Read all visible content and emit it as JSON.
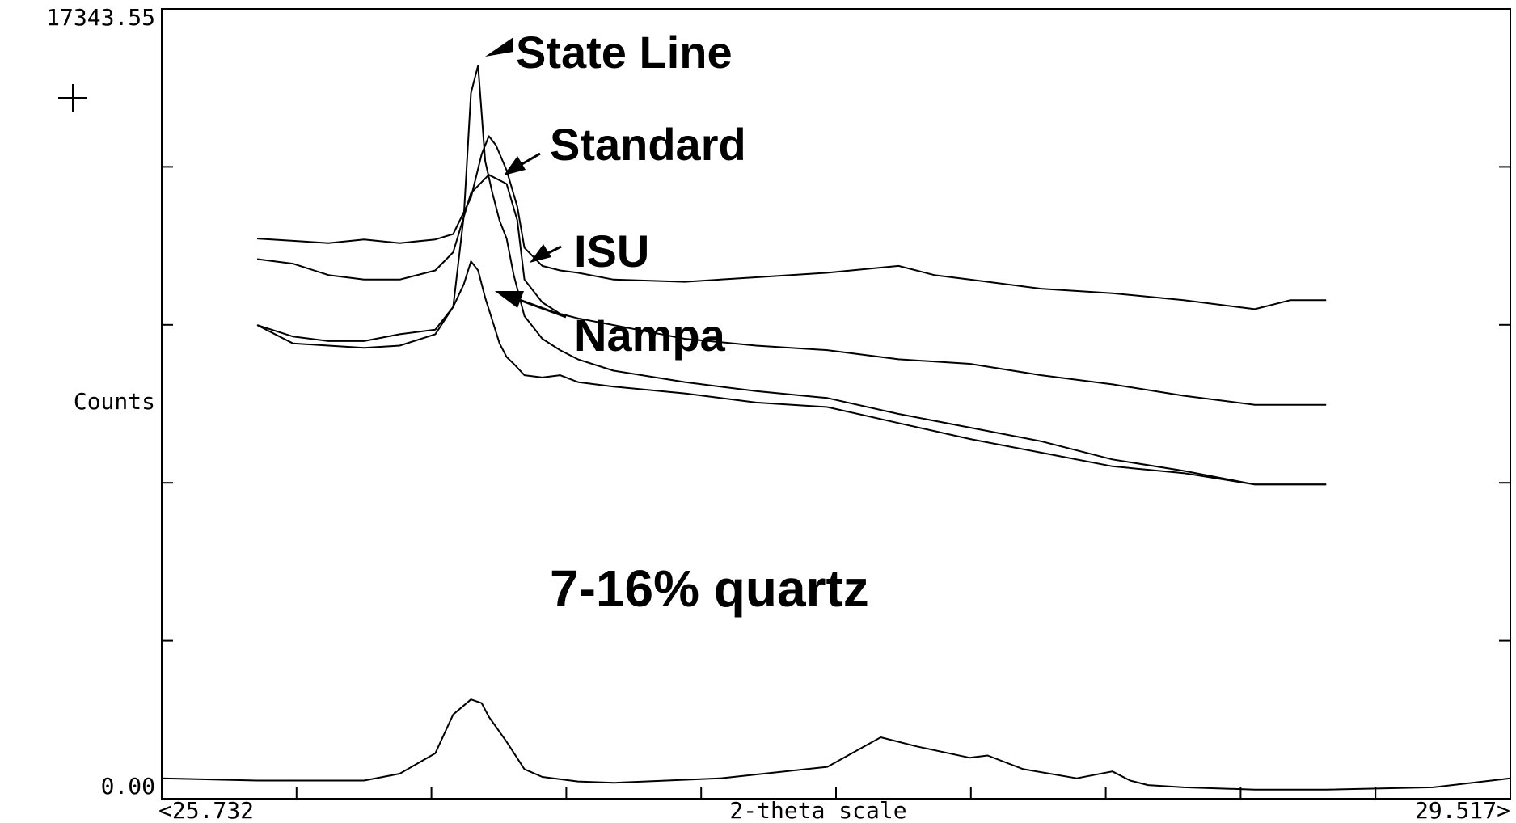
{
  "chart_data": {
    "type": "line",
    "title": "",
    "xlabel": "2-theta scale",
    "ylabel": "Counts",
    "xlim": [
      25.732,
      29.517
    ],
    "ylim": [
      0.0,
      17343.55
    ],
    "x_tick_labels": {
      "left": "<25.732",
      "right": "29.517>"
    },
    "y_tick_labels": {
      "top": "17343.55",
      "bottom": "0.00"
    },
    "grid": false,
    "legend": "none",
    "annotations": [
      {
        "id": "state-line",
        "text": "State  Line"
      },
      {
        "id": "standard",
        "text": "Standard"
      },
      {
        "id": "isu",
        "text": "ISU"
      },
      {
        "id": "nampa",
        "text": "Nampa"
      },
      {
        "id": "note",
        "text": "7-16% quartz"
      }
    ],
    "series": [
      {
        "id": "standard",
        "x": [
          26.0,
          26.1,
          26.2,
          26.3,
          26.4,
          26.5,
          26.55,
          26.6,
          26.63,
          26.65,
          26.67,
          26.7,
          26.73,
          26.75,
          26.8,
          26.85,
          26.9,
          27.0,
          27.2,
          27.4,
          27.6,
          27.8,
          27.9,
          28.0,
          28.2,
          28.4,
          28.6,
          28.8,
          28.9,
          29.0
        ],
        "y": [
          12300,
          12250,
          12200,
          12280,
          12200,
          12280,
          12400,
          13200,
          14150,
          14550,
          14350,
          13800,
          13000,
          12100,
          11700,
          11600,
          11550,
          11400,
          11350,
          11450,
          11550,
          11700,
          11500,
          11400,
          11200,
          11100,
          10950,
          10750,
          10950,
          10950
        ]
      },
      {
        "id": "isu",
        "x": [
          26.0,
          26.1,
          26.2,
          26.3,
          26.4,
          26.5,
          26.55,
          26.6,
          26.65,
          26.7,
          26.73,
          26.75,
          26.8,
          26.85,
          26.9,
          27.0,
          27.2,
          27.4,
          27.6,
          27.8,
          28.0,
          28.2,
          28.4,
          28.6,
          28.8,
          28.9,
          29.0
        ],
        "y": [
          11850,
          11750,
          11500,
          11400,
          11400,
          11600,
          12000,
          13300,
          13700,
          13500,
          12700,
          11400,
          10900,
          10650,
          10550,
          10400,
          10100,
          9950,
          9850,
          9650,
          9550,
          9300,
          9100,
          8850,
          8650,
          8650,
          8650
        ]
      },
      {
        "id": "state-line",
        "x": [
          26.0,
          26.1,
          26.2,
          26.3,
          26.4,
          26.5,
          26.55,
          26.58,
          26.6,
          26.62,
          26.64,
          26.66,
          26.68,
          26.7,
          26.72,
          26.75,
          26.8,
          26.85,
          26.9,
          27.0,
          27.2,
          27.4,
          27.6,
          27.8,
          28.0,
          28.2,
          28.4,
          28.6,
          28.8,
          28.9,
          29.0
        ],
        "y": [
          10400,
          10150,
          10050,
          10050,
          10200,
          10300,
          10800,
          12800,
          15500,
          16100,
          14000,
          13300,
          12700,
          12300,
          11500,
          10600,
          10100,
          9850,
          9650,
          9400,
          9150,
          8950,
          8800,
          8450,
          8150,
          7850,
          7450,
          7200,
          6900,
          6900,
          6900
        ]
      },
      {
        "id": "nampa",
        "x": [
          26.0,
          26.1,
          26.2,
          26.3,
          26.4,
          26.5,
          26.55,
          26.58,
          26.6,
          26.62,
          26.64,
          26.66,
          26.68,
          26.7,
          26.72,
          26.75,
          26.8,
          26.85,
          26.9,
          27.0,
          27.2,
          27.4,
          27.6,
          27.8,
          28.0,
          28.2,
          28.4,
          28.6,
          28.8,
          28.9,
          29.0
        ],
        "y": [
          10400,
          10000,
          9950,
          9900,
          9950,
          10200,
          10800,
          11300,
          11800,
          11600,
          11000,
          10500,
          10000,
          9700,
          9550,
          9300,
          9250,
          9300,
          9150,
          9050,
          8900,
          8700,
          8600,
          8250,
          7900,
          7600,
          7300,
          7150,
          6900,
          6900,
          6900
        ]
      },
      {
        "id": "quartz-reference",
        "x": [
          25.732,
          26.0,
          26.3,
          26.4,
          26.5,
          26.55,
          26.6,
          26.63,
          26.65,
          26.7,
          26.75,
          26.8,
          26.9,
          27.0,
          27.3,
          27.6,
          27.75,
          27.85,
          28.0,
          28.05,
          28.15,
          28.3,
          28.4,
          28.45,
          28.5,
          28.6,
          28.8,
          29.0,
          29.3,
          29.517
        ],
        "y": [
          450,
          400,
          400,
          550,
          1000,
          1850,
          2180,
          2100,
          1800,
          1250,
          650,
          480,
          380,
          350,
          450,
          700,
          1350,
          1150,
          900,
          950,
          650,
          450,
          600,
          400,
          300,
          250,
          200,
          200,
          250,
          450
        ]
      }
    ]
  }
}
